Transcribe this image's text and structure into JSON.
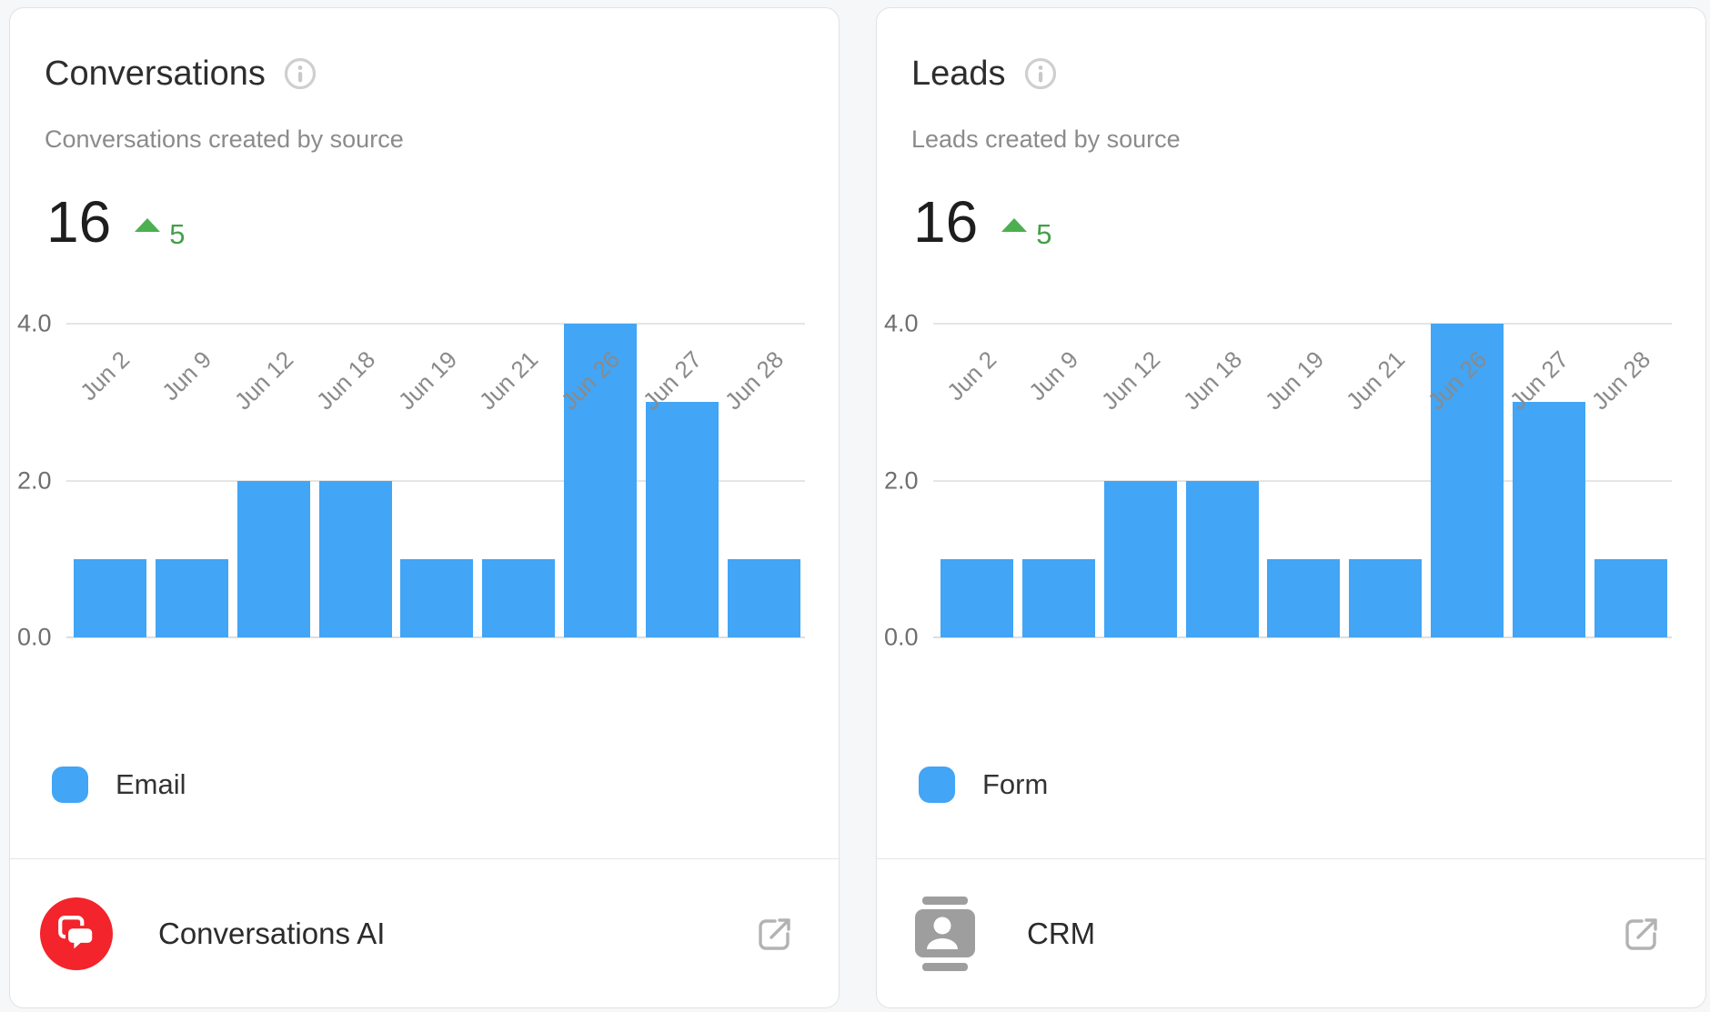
{
  "page": {
    "background_color": "#f6f7f8"
  },
  "cards": [
    {
      "title": "Conversations",
      "title_info_icon": "info-icon",
      "subtitle": "Conversations created by source",
      "metric": {
        "value": "16",
        "delta": "5",
        "delta_direction": "up",
        "delta_icon": "arrow-up-icon",
        "delta_color": "#43a047"
      },
      "legend": {
        "label": "Email",
        "swatch_color": "#42a5f5"
      },
      "footer": {
        "app_label": "Conversations AI",
        "app_icon": "conversations-chat-icon",
        "app_icon_color": "#f3242c",
        "action_icon": "external-link-icon"
      },
      "chart_data": {
        "type": "bar",
        "categories": [
          "Jun 2",
          "Jun 9",
          "Jun 12",
          "Jun 18",
          "Jun 19",
          "Jun 21",
          "Jun 26",
          "Jun 27",
          "Jun 28"
        ],
        "values": [
          1,
          1,
          2,
          2,
          1,
          1,
          4,
          3,
          1
        ],
        "series": [
          {
            "name": "Email",
            "values": [
              1,
              1,
              2,
              2,
              1,
              1,
              4,
              3,
              1
            ]
          }
        ],
        "title": "Conversations created by source",
        "xlabel": "",
        "ylabel": "",
        "yticks": [
          "0.0",
          "2.0",
          "4.0"
        ],
        "ylim": [
          0,
          4
        ],
        "grid": true,
        "bar_color": "#42a5f5",
        "legend_position": "bottom"
      }
    },
    {
      "title": "Leads",
      "title_info_icon": "info-icon",
      "subtitle": "Leads created by source",
      "metric": {
        "value": "16",
        "delta": "5",
        "delta_direction": "up",
        "delta_icon": "arrow-up-icon",
        "delta_color": "#43a047"
      },
      "legend": {
        "label": "Form",
        "swatch_color": "#42a5f5"
      },
      "footer": {
        "app_label": "CRM",
        "app_icon": "crm-contact-icon",
        "app_icon_color": "#9e9e9e",
        "action_icon": "external-link-icon"
      },
      "chart_data": {
        "type": "bar",
        "categories": [
          "Jun 2",
          "Jun 9",
          "Jun 12",
          "Jun 18",
          "Jun 19",
          "Jun 21",
          "Jun 26",
          "Jun 27",
          "Jun 28"
        ],
        "values": [
          1,
          1,
          2,
          2,
          1,
          1,
          4,
          3,
          1
        ],
        "series": [
          {
            "name": "Form",
            "values": [
              1,
              1,
              2,
              2,
              1,
              1,
              4,
              3,
              1
            ]
          }
        ],
        "title": "Leads created by source",
        "xlabel": "",
        "ylabel": "",
        "yticks": [
          "0.0",
          "2.0",
          "4.0"
        ],
        "ylim": [
          0,
          4
        ],
        "grid": true,
        "bar_color": "#42a5f5",
        "legend_position": "bottom"
      }
    }
  ]
}
